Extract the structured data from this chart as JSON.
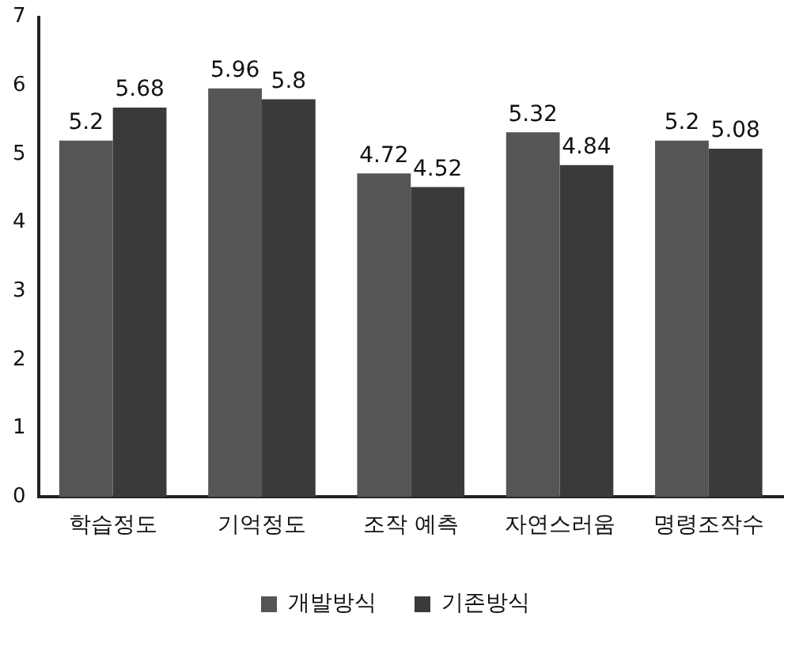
{
  "chart_data": {
    "type": "bar",
    "categories": [
      "학습정도",
      "기억정도",
      "조작 예측",
      "자연스러움",
      "명령조작수"
    ],
    "series": [
      {
        "name": "개발방식",
        "color": "#555555",
        "values": [
          5.2,
          5.96,
          4.72,
          5.32,
          5.2
        ]
      },
      {
        "name": "기존방식",
        "color": "#3a3a3a",
        "values": [
          5.68,
          5.8,
          4.52,
          4.84,
          5.08
        ]
      }
    ],
    "ylim": [
      0,
      7
    ],
    "yticks": [
      0,
      1,
      2,
      3,
      4,
      5,
      6,
      7
    ],
    "grid": false,
    "legend": "bottom",
    "data_labels": true
  }
}
